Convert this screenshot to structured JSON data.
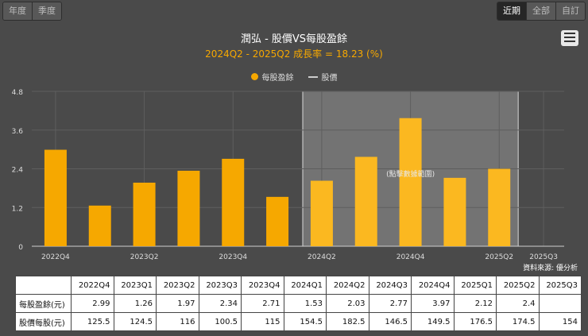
{
  "toolbar": {
    "period_left": [
      "年度",
      "季度"
    ],
    "range_right": [
      "近期",
      "全部",
      "自訂"
    ]
  },
  "chart_data": {
    "type": "bar",
    "title": "潤弘 - 股價VS每股盈餘",
    "subtitle": "2024Q2 - 2025Q2 成長率 = 18.23 (%)",
    "legend": [
      {
        "name": "每股盈餘",
        "kind": "bar",
        "color": "#f6a800"
      },
      {
        "name": "股價",
        "kind": "line",
        "color": "#cccccc"
      }
    ],
    "categories": [
      "2022Q4",
      "2023Q1",
      "2023Q2",
      "2023Q3",
      "2023Q4",
      "2024Q1",
      "2024Q2",
      "2024Q3",
      "2024Q4",
      "2025Q1",
      "2025Q2",
      "2025Q3"
    ],
    "x_tick_labels": [
      "2022Q4",
      "2023Q2",
      "2023Q4",
      "2024Q2",
      "2024Q4",
      "2025Q2",
      "2025Q3"
    ],
    "series": [
      {
        "name": "每股盈餘",
        "values": [
          2.99,
          1.26,
          1.97,
          2.34,
          2.71,
          1.53,
          2.03,
          2.77,
          3.97,
          2.12,
          2.4,
          null
        ]
      }
    ],
    "y_ticks": [
      "0",
      "1.2",
      "2.4",
      "3.6",
      "4.8"
    ],
    "ylim": [
      0,
      4.8
    ],
    "highlight_range": [
      "2024Q2",
      "2025Q2"
    ],
    "highlight_label": "(點擊數據範圍)",
    "source": "資料來源: 優分析",
    "bar_color": "#f6a800",
    "highlight_bar_color": "#fbb820"
  },
  "table": {
    "headers": [
      "",
      "2022Q4",
      "2023Q1",
      "2023Q2",
      "2023Q3",
      "2023Q4",
      "2024Q1",
      "2024Q2",
      "2024Q3",
      "2024Q4",
      "2025Q1",
      "2025Q2",
      "2025Q3"
    ],
    "rows": [
      {
        "label": "每股盈餘(元)",
        "cells": [
          "2.99",
          "1.26",
          "1.97",
          "2.34",
          "2.71",
          "1.53",
          "2.03",
          "2.77",
          "3.97",
          "2.12",
          "2.4",
          ""
        ]
      },
      {
        "label": "股價每股(元)",
        "cells": [
          "125.5",
          "124.5",
          "116",
          "100.5",
          "115",
          "154.5",
          "182.5",
          "146.5",
          "149.5",
          "176.5",
          "174.5",
          "154"
        ]
      }
    ]
  }
}
